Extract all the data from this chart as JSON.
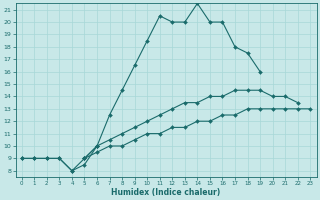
{
  "xlabel": "Humidex (Indice chaleur)",
  "bg_color": "#c8e8e8",
  "line_color": "#1a6b6b",
  "grid_color": "#a8d8d8",
  "xlim": [
    -0.5,
    23.5
  ],
  "ylim": [
    7.5,
    21.5
  ],
  "xticks": [
    0,
    1,
    2,
    3,
    4,
    5,
    6,
    7,
    8,
    9,
    10,
    11,
    12,
    13,
    14,
    15,
    16,
    17,
    18,
    19,
    20,
    21,
    22,
    23
  ],
  "yticks": [
    8,
    9,
    10,
    11,
    12,
    13,
    14,
    15,
    16,
    17,
    18,
    19,
    20,
    21
  ],
  "marker": "D",
  "marker_size": 2.0,
  "line_width": 0.8,
  "curves": [
    {
      "x": [
        0,
        1,
        2,
        3,
        4,
        5,
        6,
        7,
        8,
        9,
        10,
        11,
        12,
        13,
        14,
        15,
        16,
        17,
        18,
        19
      ],
      "y": [
        9.0,
        9.0,
        9.0,
        9.0,
        8.0,
        9.0,
        10.0,
        12.5,
        14.5,
        16.5,
        18.5,
        20.5,
        20.0,
        20.0,
        21.5,
        20.0,
        20.0,
        18.0,
        17.5,
        16.0
      ]
    },
    {
      "x": [
        0,
        1,
        2,
        3,
        4,
        5,
        6
      ],
      "y": [
        9.0,
        9.0,
        9.0,
        9.0,
        8.0,
        8.5,
        10.0
      ]
    },
    {
      "x": [
        5,
        6,
        7,
        8,
        9,
        10,
        11,
        12,
        13,
        14,
        15,
        16,
        17,
        18,
        19,
        20,
        21,
        22
      ],
      "y": [
        9.0,
        10.0,
        10.5,
        11.0,
        11.5,
        12.0,
        12.5,
        13.0,
        13.5,
        13.5,
        14.0,
        14.0,
        14.5,
        14.5,
        14.5,
        14.0,
        14.0,
        13.5
      ]
    },
    {
      "x": [
        5,
        6,
        7,
        8,
        9,
        10,
        11,
        12,
        13,
        14,
        15,
        16,
        17,
        18,
        19,
        20,
        21,
        22,
        23
      ],
      "y": [
        9.0,
        9.5,
        10.0,
        10.0,
        10.5,
        11.0,
        11.0,
        11.5,
        11.5,
        12.0,
        12.0,
        12.5,
        12.5,
        13.0,
        13.0,
        13.0,
        13.0,
        13.0,
        13.0
      ]
    }
  ]
}
